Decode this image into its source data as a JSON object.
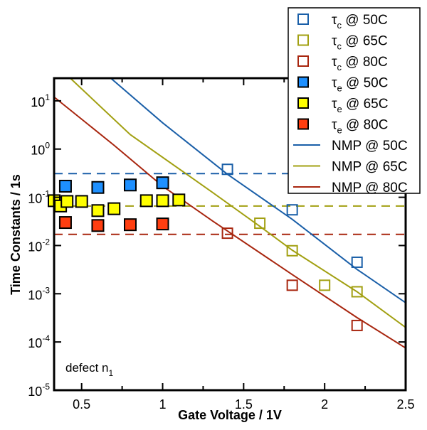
{
  "chart_data": {
    "type": "scatter",
    "title": "",
    "xlabel": "Gate Voltage / 1V",
    "ylabel": "Time Constants / 1s",
    "xlim": [
      0.33,
      2.5
    ],
    "ylim": [
      1e-05,
      29.5
    ],
    "yscale": "log",
    "xticks": [
      0.5,
      1,
      1.5,
      2,
      2.5
    ],
    "xtick_labels": [
      "0.5",
      "1",
      "1.5",
      "2",
      "2.5"
    ],
    "yticks": [
      {
        "base": "10",
        "exp": "1",
        "value": 10
      },
      {
        "base": "10",
        "exp": "0",
        "value": 1
      },
      {
        "base": "10",
        "exp": "-1",
        "value": 0.1
      },
      {
        "base": "10",
        "exp": "-2",
        "value": 0.01
      },
      {
        "base": "10",
        "exp": "-3",
        "value": 0.001
      },
      {
        "base": "10",
        "exp": "-4",
        "value": 0.0001
      },
      {
        "base": "10",
        "exp": "-5",
        "value": 1e-05
      }
    ],
    "annotation": {
      "text": "defect n",
      "sub": "1"
    },
    "legend_position": "top-right",
    "series": [
      {
        "name": "τc @ 50C",
        "sym": "τ",
        "sub": "c",
        "rest": " @ 50C",
        "kind": "open",
        "color": "#1a5fa8",
        "x": [
          1.4,
          1.8,
          2.2
        ],
        "y": [
          0.38,
          0.055,
          0.0045
        ]
      },
      {
        "name": "τc @ 65C",
        "sym": "τ",
        "sub": "c",
        "rest": " @ 65C",
        "kind": "open",
        "color": "#a2a012",
        "x": [
          1.6,
          1.8,
          2.0,
          2.2
        ],
        "y": [
          0.029,
          0.0078,
          0.0015,
          0.0011
        ]
      },
      {
        "name": "τc @ 80C",
        "sym": "τ",
        "sub": "c",
        "rest": " @ 80C",
        "kind": "open",
        "color": "#a8260f",
        "x": [
          1.4,
          1.8,
          2.2
        ],
        "y": [
          0.018,
          0.0015,
          0.00022
        ]
      },
      {
        "name": "τe @ 50C",
        "sym": "τ",
        "sub": "e",
        "rest": " @ 50C",
        "kind": "filled",
        "color": "#1e90ff",
        "x": [
          0.4,
          0.6,
          0.8,
          1.0
        ],
        "y": [
          0.17,
          0.16,
          0.18,
          0.2
        ]
      },
      {
        "name": "τe @ 65C",
        "sym": "τ",
        "sub": "e",
        "rest": " @ 65C",
        "kind": "filled",
        "color": "#ffff00",
        "x": [
          0.33,
          0.37,
          0.41,
          0.5,
          0.6,
          0.7,
          0.9,
          1.0,
          1.1
        ],
        "y": [
          0.085,
          0.066,
          0.082,
          0.082,
          0.053,
          0.058,
          0.085,
          0.085,
          0.088
        ]
      },
      {
        "name": "τe @ 80C",
        "sym": "τ",
        "sub": "e",
        "rest": " @ 80C",
        "kind": "filled",
        "color": "#ff3e10",
        "x": [
          0.4,
          0.6,
          0.8,
          1.0
        ],
        "y": [
          0.03,
          0.026,
          0.027,
          0.028
        ]
      },
      {
        "name": "NMP @ 50C",
        "sym": "",
        "sub": "",
        "rest": "NMP @ 50C",
        "kind": "line",
        "color": "#1a5fa8",
        "x": [
          0.68,
          1.0,
          1.4,
          1.8,
          2.2,
          2.5
        ],
        "y": [
          29.5,
          3.5,
          0.3,
          0.035,
          0.0032,
          0.00065
        ]
      },
      {
        "name": "NMP @ 65C",
        "sym": "",
        "sub": "",
        "rest": "NMP @ 65C",
        "kind": "line",
        "color": "#a2a012",
        "x": [
          0.43,
          0.8,
          1.31,
          1.6,
          1.8,
          2.2,
          2.5
        ],
        "y": [
          29.5,
          2.0,
          0.125,
          0.025,
          0.008,
          0.0011,
          0.0002
        ]
      },
      {
        "name": "NMP @ 80C",
        "sym": "",
        "sub": "",
        "rest": "NMP @ 80C",
        "kind": "line",
        "color": "#a8260f",
        "x": [
          0.33,
          0.7,
          1.0,
          1.31,
          1.8,
          2.2,
          2.5
        ],
        "y": [
          12,
          1.2,
          0.17,
          0.032,
          0.0025,
          0.00032,
          7.5e-05
        ]
      }
    ],
    "reference_lines": [
      {
        "label": "τe mean 50C",
        "color": "#1a5fa8",
        "y": 0.31
      },
      {
        "label": "τe mean 65C",
        "color": "#a2a012",
        "y": 0.066
      },
      {
        "label": "τe mean 80C",
        "color": "#a8260f",
        "y": 0.017
      }
    ]
  }
}
